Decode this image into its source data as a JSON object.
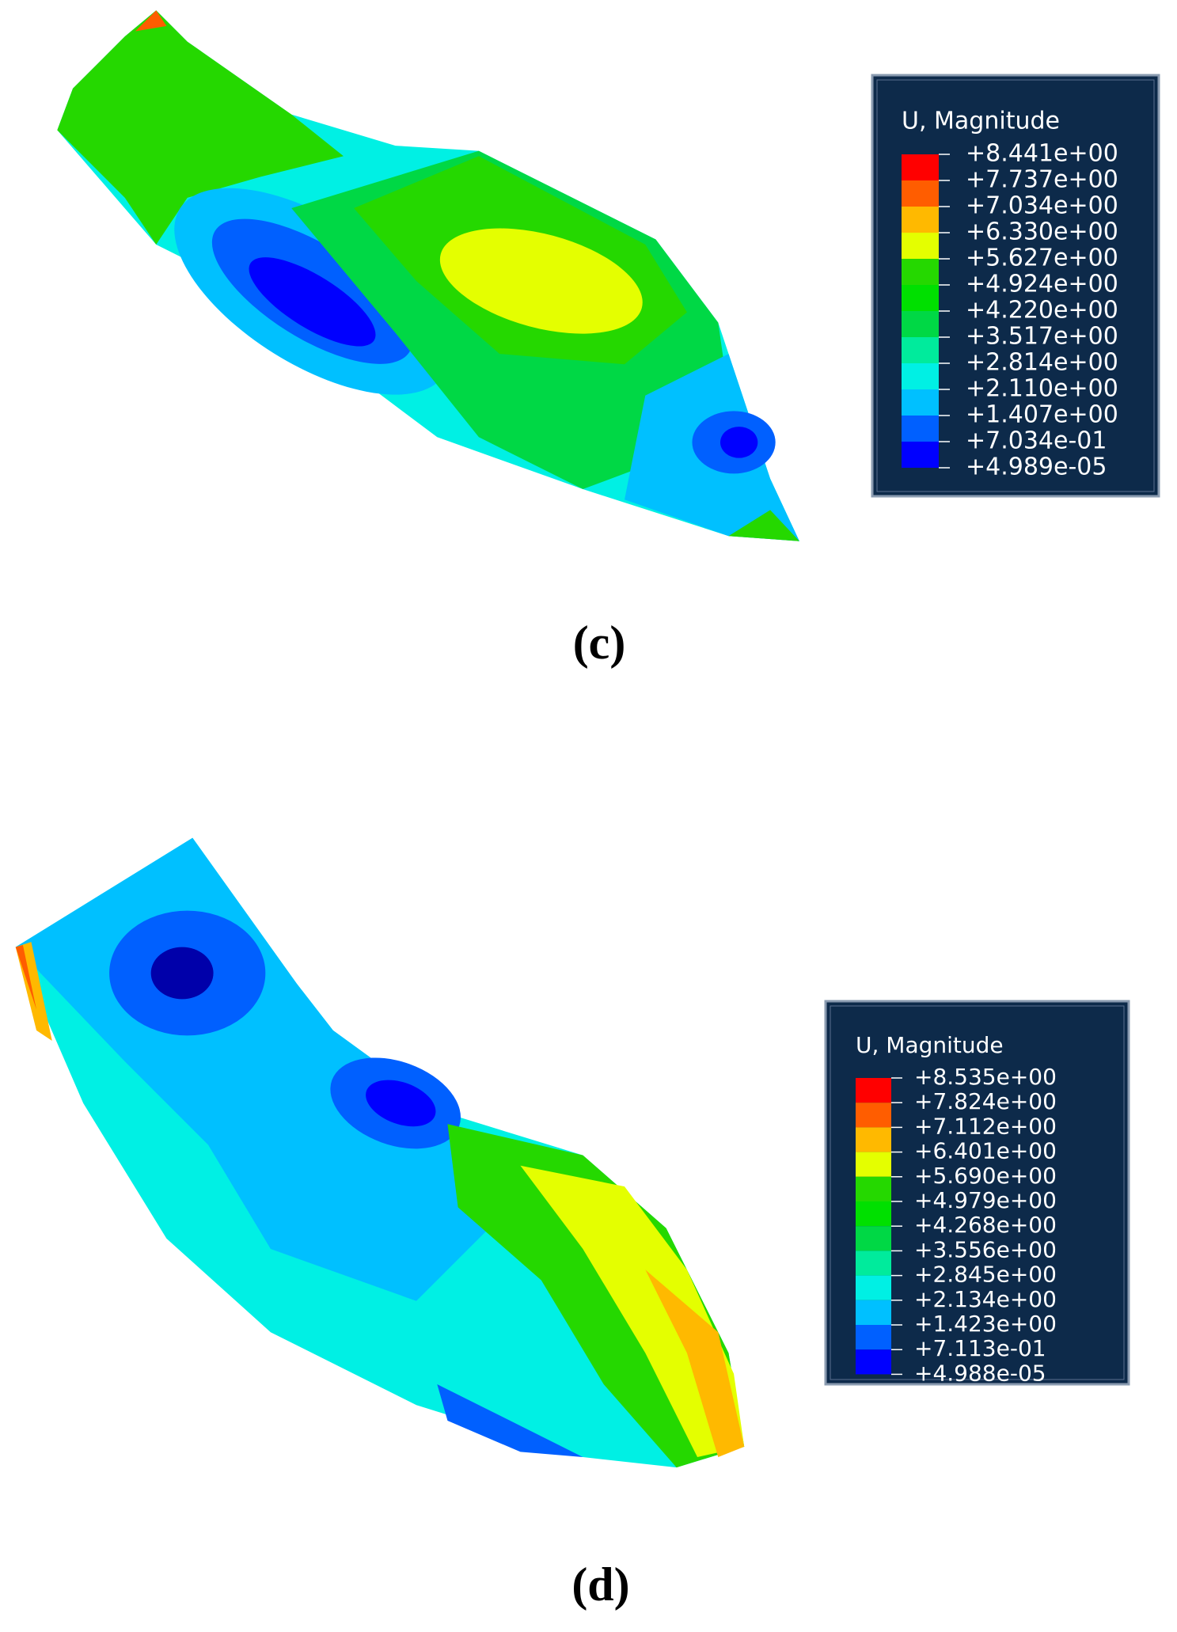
{
  "panels": [
    {
      "legend_title": "U, Magnitude",
      "legend_labels": [
        "+8.441e+00",
        "+7.737e+00",
        "+7.034e+00",
        "+6.330e+00",
        "+5.627e+00",
        "+4.924e+00",
        "+4.220e+00",
        "+3.517e+00",
        "+2.814e+00",
        "+2.110e+00",
        "+1.407e+00",
        "+7.034e-01",
        "+4.989e-05"
      ],
      "legend_colors": [
        "#ff0000",
        "#ff5d00",
        "#ffb900",
        "#e4ff00",
        "#25d800",
        "#00e000",
        "#00d845",
        "#00eb9c",
        "#00f0e4",
        "#00c0ff",
        "#0060ff",
        "#0000ff"
      ],
      "caption": "(c)"
    },
    {
      "legend_title": "U, Magnitude",
      "legend_labels": [
        "+8.535e+00",
        "+7.824e+00",
        "+7.112e+00",
        "+6.401e+00",
        "+5.690e+00",
        "+4.979e+00",
        "+4.268e+00",
        "+3.556e+00",
        "+2.845e+00",
        "+2.134e+00",
        "+1.423e+00",
        "+7.113e-01",
        "+4.988e-05"
      ],
      "legend_colors": [
        "#ff0000",
        "#ff5d00",
        "#ffb900",
        "#e4ff00",
        "#25d800",
        "#00e000",
        "#00d845",
        "#00eb9c",
        "#00f0e4",
        "#00c0ff",
        "#0060ff",
        "#0000ff"
      ],
      "caption": "(d)"
    }
  ]
}
